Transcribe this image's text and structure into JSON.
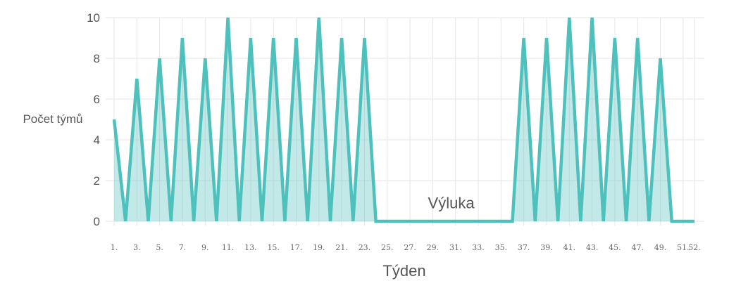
{
  "chart_data": {
    "type": "area",
    "xlabel": "Týden",
    "ylabel": "Počet týmů",
    "ylim": [
      0,
      10
    ],
    "y_ticks": [
      0,
      2,
      4,
      6,
      8,
      10
    ],
    "grid": true,
    "x_tick_labels": [
      "1.",
      "3.",
      "5.",
      "7.",
      "9.",
      "11.",
      "13.",
      "15.",
      "17.",
      "19.",
      "21.",
      "23.",
      "25.",
      "27.",
      "29.",
      "31.",
      "33.",
      "35.",
      "37.",
      "39.",
      "41.",
      "43.",
      "45.",
      "47.",
      "49.",
      "51.",
      "52."
    ],
    "x": [
      1,
      2,
      3,
      4,
      5,
      6,
      7,
      8,
      9,
      10,
      11,
      12,
      13,
      14,
      15,
      16,
      17,
      18,
      19,
      20,
      21,
      22,
      23,
      24,
      25,
      26,
      27,
      28,
      29,
      30,
      31,
      32,
      33,
      34,
      35,
      36,
      37,
      38,
      39,
      40,
      41,
      42,
      43,
      44,
      45,
      46,
      47,
      48,
      49,
      50,
      51,
      52
    ],
    "series": [
      {
        "values": [
          5,
          0,
          7,
          0,
          8,
          0,
          9,
          0,
          8,
          0,
          10,
          0,
          9,
          0,
          9,
          0,
          9,
          0,
          10,
          0,
          9,
          0,
          9,
          0,
          0,
          0,
          0,
          0,
          0,
          0,
          0,
          0,
          0,
          0,
          0,
          0,
          9,
          0,
          9,
          0,
          10,
          0,
          10,
          0,
          9,
          0,
          9,
          0,
          8,
          0,
          0,
          0
        ],
        "color": "#4fc1bd"
      }
    ],
    "annotations": [
      {
        "text": "Výluka",
        "x": 30,
        "y": 0.7
      }
    ]
  }
}
